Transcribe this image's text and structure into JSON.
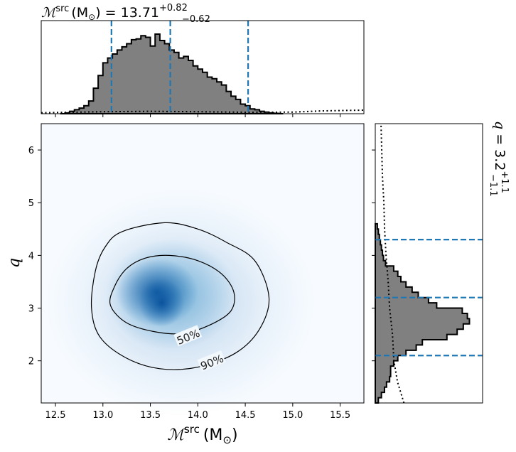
{
  "chart_data": {
    "type": "corner-plot",
    "parameters": [
      "chirp_mass_source",
      "mass_ratio"
    ],
    "top_title": {
      "symbol": "ℳ",
      "sup": "src",
      "unit": "(M",
      "median": "13.71",
      "plus": "+0.82",
      "minus": "−0.62"
    },
    "right_title": {
      "symbol": "q",
      "median": "3.2",
      "plus": "+1.1",
      "minus": "−1.1"
    },
    "xlabel": {
      "symbol": "ℳ",
      "sup": "src",
      "unit": "(M"
    },
    "ylabel": "q",
    "xlim": [
      12.35,
      15.75
    ],
    "ylim": [
      1.2,
      6.5
    ],
    "xticks": [
      12.5,
      13.0,
      13.5,
      14.0,
      14.5,
      15.0,
      15.5
    ],
    "xtick_labels": [
      "12.5",
      "13.0",
      "13.5",
      "14.0",
      "14.5",
      "15.0",
      "15.5"
    ],
    "yticks": [
      2,
      3,
      4,
      5,
      6
    ],
    "ytick_labels": [
      "2",
      "3",
      "4",
      "5",
      "6"
    ],
    "mc_quantiles": [
      13.09,
      13.71,
      14.53
    ],
    "q_quantiles": [
      2.1,
      3.2,
      4.3
    ],
    "mc_hist": {
      "edges_start": 12.55,
      "bin_width": 0.05,
      "values": [
        0,
        0.01,
        0.03,
        0.05,
        0.07,
        0.1,
        0.16,
        0.32,
        0.48,
        0.64,
        0.7,
        0.75,
        0.8,
        0.84,
        0.88,
        0.93,
        0.94,
        0.98,
        0.96,
        0.85,
        1.0,
        0.92,
        0.88,
        0.8,
        0.77,
        0.7,
        0.72,
        0.67,
        0.6,
        0.56,
        0.52,
        0.46,
        0.44,
        0.4,
        0.36,
        0.28,
        0.22,
        0.18,
        0.12,
        0.1,
        0.06,
        0.05,
        0.03,
        0.02,
        0.01,
        0.005,
        0.0
      ]
    },
    "mc_prior": {
      "x": [
        12.35,
        13.0,
        13.5,
        14.0,
        14.5,
        15.0,
        15.3,
        15.75
      ],
      "y": [
        0.012,
        0.025,
        0.03,
        0.025,
        0.018,
        0.02,
        0.035,
        0.045
      ]
    },
    "q_hist": {
      "edges_start": 1.2,
      "bin_width": 0.1,
      "values": [
        0.03,
        0.06,
        0.09,
        0.11,
        0.14,
        0.15,
        0.15,
        0.18,
        0.22,
        0.3,
        0.4,
        0.46,
        0.7,
        0.8,
        0.86,
        0.92,
        0.9,
        0.85,
        0.6,
        0.52,
        0.42,
        0.36,
        0.3,
        0.25,
        0.22,
        0.18,
        0.1,
        0.08,
        0.07,
        0.06,
        0.05,
        0.04,
        0.03,
        0.02
      ]
    },
    "q_prior": {
      "q": [
        1.2,
        1.6,
        2.0,
        2.5,
        3.0,
        3.5,
        4.0,
        4.5,
        5.0,
        5.5,
        6.0,
        6.5
      ],
      "w": [
        0.4,
        0.31,
        0.26,
        0.24,
        0.2,
        0.18,
        0.15,
        0.13,
        0.12,
        0.1,
        0.09,
        0.08
      ]
    },
    "density_peak": {
      "mc": 13.62,
      "q": 3.25
    },
    "contours": [
      {
        "label": "50%",
        "label_at": {
          "mc": 13.9,
          "q": 2.45
        },
        "points": [
          [
            13.45,
            3.95
          ],
          [
            13.7,
            4.0
          ],
          [
            14.0,
            3.9
          ],
          [
            14.25,
            3.65
          ],
          [
            14.38,
            3.3
          ],
          [
            14.35,
            2.95
          ],
          [
            14.15,
            2.7
          ],
          [
            13.85,
            2.52
          ],
          [
            13.55,
            2.55
          ],
          [
            13.25,
            2.72
          ],
          [
            13.08,
            3.05
          ],
          [
            13.12,
            3.4
          ],
          [
            13.25,
            3.75
          ]
        ]
      },
      {
        "label": "90%",
        "label_at": {
          "mc": 14.15,
          "q": 1.97
        },
        "points": [
          [
            13.2,
            4.45
          ],
          [
            13.65,
            4.62
          ],
          [
            14.0,
            4.5
          ],
          [
            14.3,
            4.25
          ],
          [
            14.6,
            3.9
          ],
          [
            14.75,
            3.2
          ],
          [
            14.65,
            2.6
          ],
          [
            14.4,
            2.15
          ],
          [
            14.0,
            1.88
          ],
          [
            13.6,
            1.85
          ],
          [
            13.25,
            2.05
          ],
          [
            12.97,
            2.45
          ],
          [
            12.88,
            3.0
          ],
          [
            12.92,
            3.7
          ],
          [
            13.02,
            4.15
          ]
        ]
      }
    ],
    "colors": {
      "hist_fill": "#808080",
      "hist_edge": "#000000",
      "quantile": "#1f77b4",
      "density": "#08589e"
    }
  }
}
